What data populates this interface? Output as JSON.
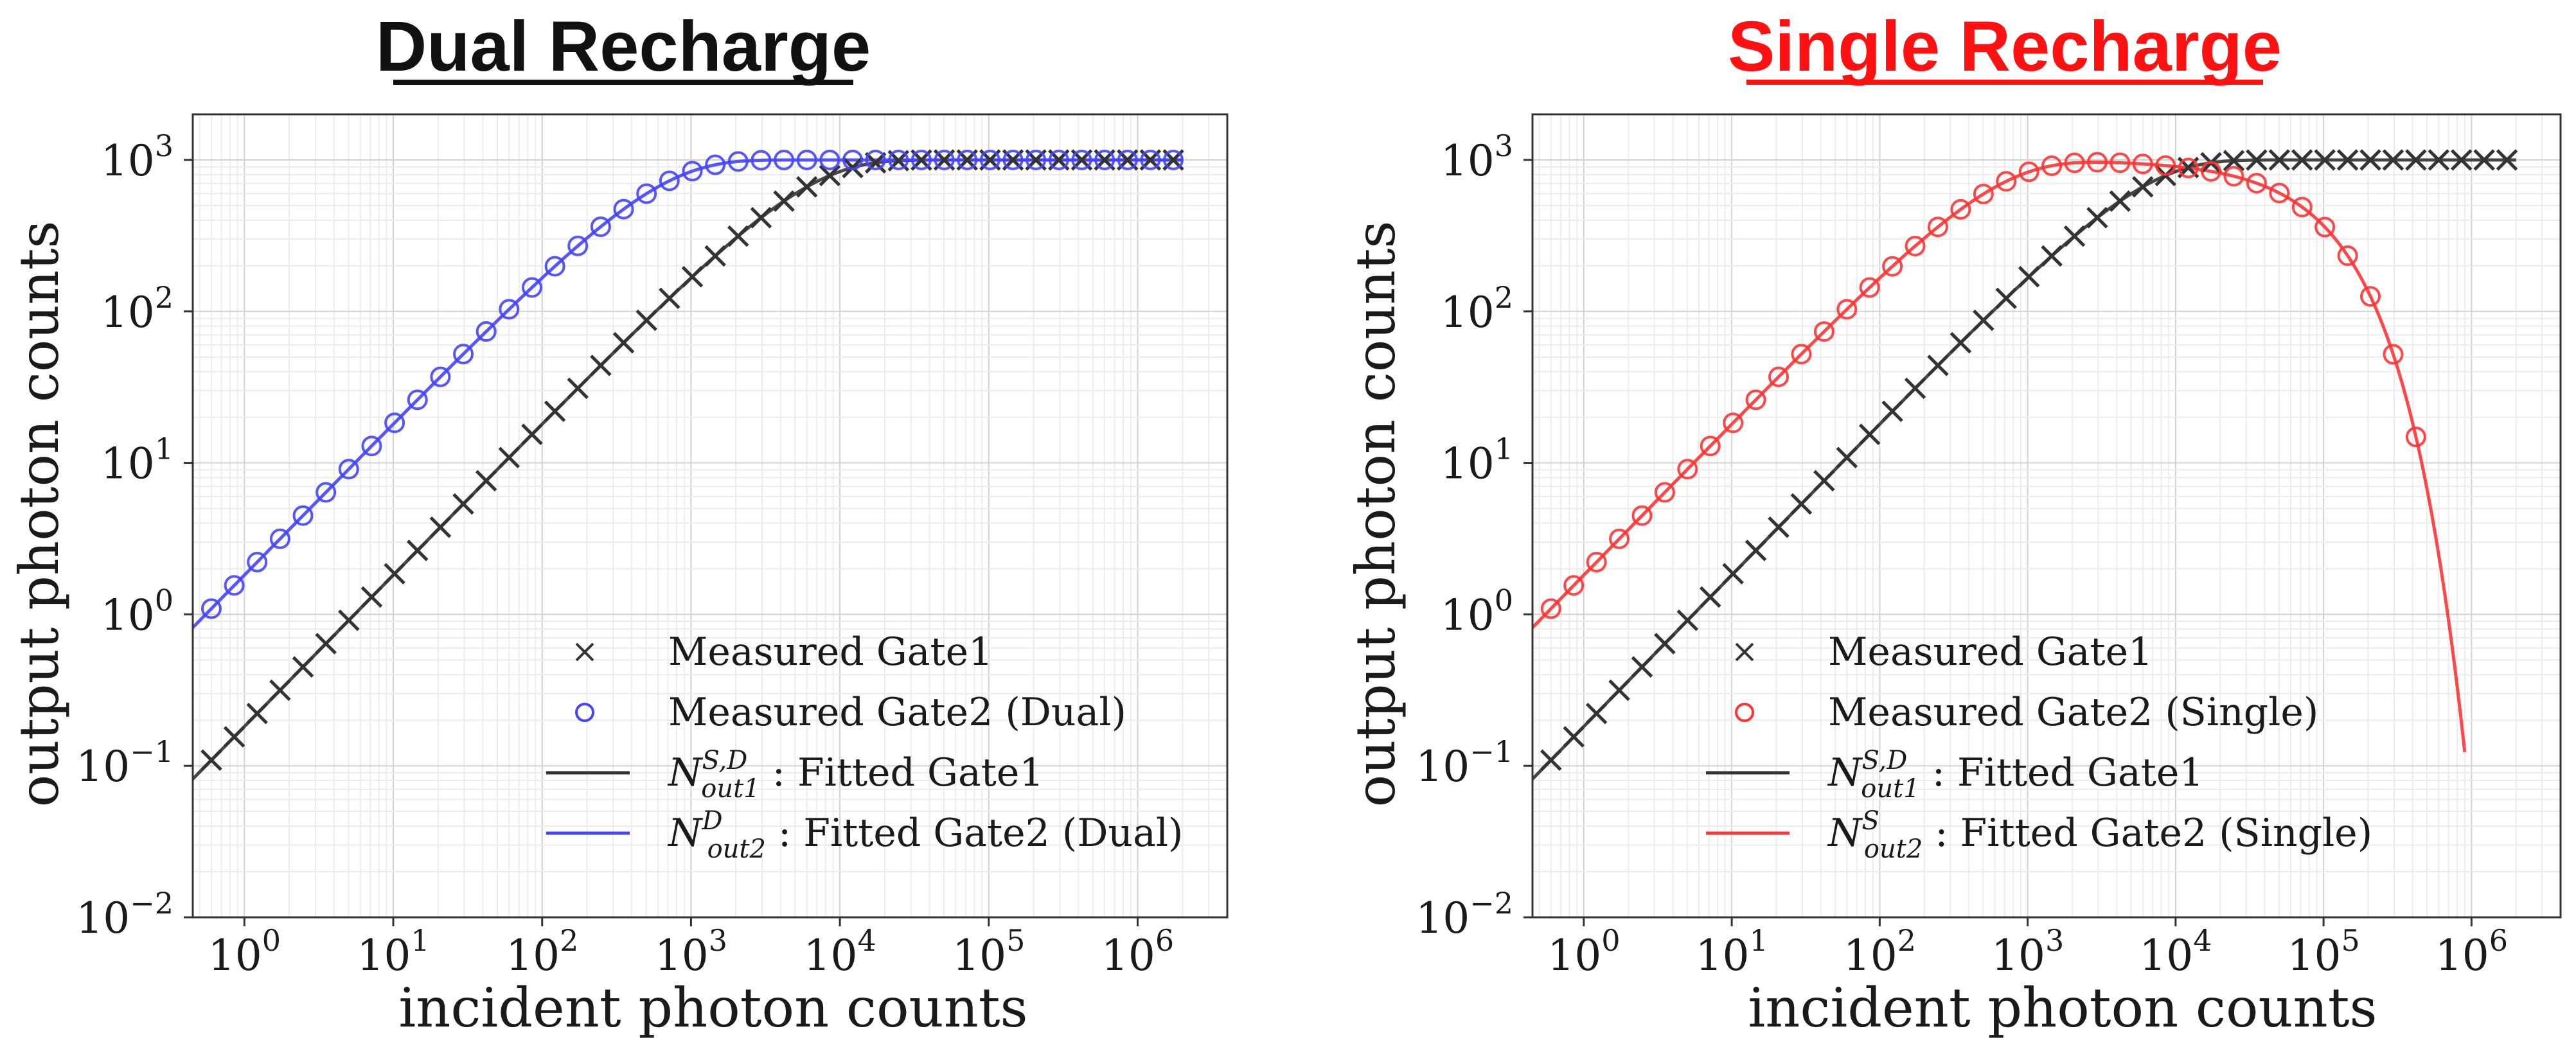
{
  "chart_data": [
    {
      "type": "line",
      "title": "Dual Recharge",
      "title_color": "#111111",
      "xlabel": "incident photon counts",
      "ylabel": "output photon counts",
      "xscale": "log",
      "yscale": "log",
      "xlim": [
        0.45,
        4000000
      ],
      "ylim": [
        0.01,
        2000
      ],
      "x_ticks": [
        {
          "base": "10",
          "exp": "0"
        },
        {
          "base": "10",
          "exp": "1"
        },
        {
          "base": "10",
          "exp": "2"
        },
        {
          "base": "10",
          "exp": "3"
        },
        {
          "base": "10",
          "exp": "4"
        },
        {
          "base": "10",
          "exp": "5"
        },
        {
          "base": "10",
          "exp": "6"
        }
      ],
      "y_ticks": [
        {
          "base": "10",
          "exp": "−2"
        },
        {
          "base": "10",
          "exp": "−1"
        },
        {
          "base": "10",
          "exp": "0"
        },
        {
          "base": "10",
          "exp": "1"
        },
        {
          "base": "10",
          "exp": "2"
        },
        {
          "base": "10",
          "exp": "3"
        }
      ],
      "grid": true,
      "legend_position": "lower-right",
      "series": [
        {
          "name": "Measured Gate1",
          "kind": "scatter",
          "marker": "x",
          "color": "#333333",
          "x_min": 0.6,
          "x_max": 2000000,
          "points_per_decade": 6.5,
          "saturation": 1000,
          "knee": 5500
        },
        {
          "name": "Measured Gate2 (Dual)",
          "kind": "scatter",
          "marker": "o",
          "color": "#4444ff",
          "x_min": 0.6,
          "x_max": 2000000,
          "points_per_decade": 6.5,
          "saturation": 1000,
          "knee": 550
        },
        {
          "name": "Fitted Gate1",
          "kind": "line",
          "color": "#333333",
          "symbol": "N",
          "sup": "S,D",
          "sub": "out1",
          "x_min": 0.45,
          "x_max": 2000000,
          "saturation": 1000,
          "knee": 5500
        },
        {
          "name": "Fitted Gate2 (Dual)",
          "kind": "line",
          "color": "#4444ff",
          "symbol": "N",
          "sup": "D",
          "sub": "out2",
          "x_min": 0.45,
          "x_max": 2000000,
          "saturation": 1000,
          "knee": 550
        }
      ]
    },
    {
      "type": "line",
      "title": "Single Recharge",
      "title_color": "#ff1111",
      "xlabel": "incident photon counts",
      "ylabel": "output photon counts",
      "xscale": "log",
      "yscale": "log",
      "xlim": [
        0.45,
        4000000
      ],
      "ylim": [
        0.01,
        2000
      ],
      "x_ticks": [
        {
          "base": "10",
          "exp": "0"
        },
        {
          "base": "10",
          "exp": "1"
        },
        {
          "base": "10",
          "exp": "2"
        },
        {
          "base": "10",
          "exp": "3"
        },
        {
          "base": "10",
          "exp": "4"
        },
        {
          "base": "10",
          "exp": "5"
        },
        {
          "base": "10",
          "exp": "6"
        }
      ],
      "y_ticks": [
        {
          "base": "10",
          "exp": "−2"
        },
        {
          "base": "10",
          "exp": "−1"
        },
        {
          "base": "10",
          "exp": "0"
        },
        {
          "base": "10",
          "exp": "1"
        },
        {
          "base": "10",
          "exp": "2"
        },
        {
          "base": "10",
          "exp": "3"
        }
      ],
      "grid": true,
      "legend_position": "lower-right",
      "series": [
        {
          "name": "Measured Gate1",
          "kind": "scatter",
          "marker": "x",
          "color": "#333333",
          "x_min": 0.6,
          "x_max": 2000000,
          "points_per_decade": 6.5,
          "saturation": 1000,
          "knee": 5500
        },
        {
          "name": "Measured Gate2 (Single)",
          "kind": "scatter",
          "marker": "o",
          "color": "#ff3333",
          "x_min": 0.6,
          "x_max": 500000,
          "points_per_decade": 6.5,
          "saturation": 1000,
          "knee": 550,
          "decay_scale": 100000
        },
        {
          "name": "Fitted Gate1",
          "kind": "line",
          "color": "#333333",
          "symbol": "N",
          "sup": "S,D",
          "sub": "out1",
          "x_min": 0.45,
          "x_max": 2000000,
          "saturation": 1000,
          "knee": 5500
        },
        {
          "name": "Fitted Gate2 (Single)",
          "kind": "line",
          "color": "#ff3333",
          "symbol": "N",
          "sup": "S",
          "sub": "out2",
          "x_min": 0.45,
          "x_max": 900000,
          "saturation": 1000,
          "knee": 550,
          "decay_scale": 100000
        }
      ]
    }
  ],
  "legend": {
    "fitted_separator": " : "
  }
}
